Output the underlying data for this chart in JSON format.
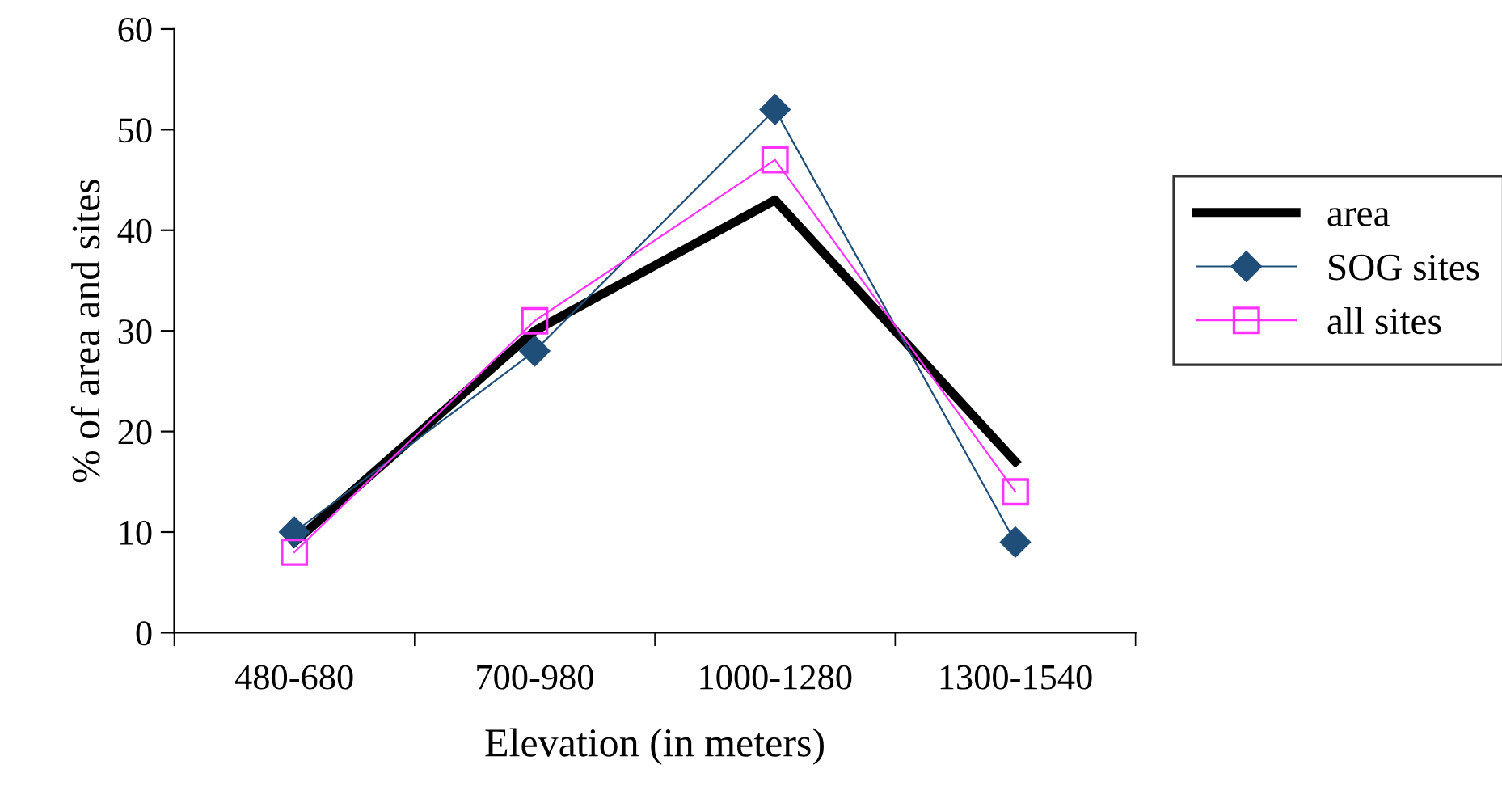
{
  "chart_data": {
    "type": "line",
    "xlabel": "Elevation (in meters)",
    "ylabel": "% of area and sites",
    "categories": [
      "480-680",
      "700-980",
      "1000-1280",
      "1300-1540"
    ],
    "series": [
      {
        "name": "area",
        "color": "#000000",
        "values": [
          9,
          30,
          43,
          17
        ],
        "marker": "none"
      },
      {
        "name": "SOG sites",
        "color": "#1f4e79",
        "values": [
          10,
          28,
          52,
          9
        ],
        "marker": "diamond"
      },
      {
        "name": "all sites",
        "color": "#ff33ff",
        "values": [
          8,
          31,
          47,
          14
        ],
        "marker": "square"
      }
    ],
    "ylim": [
      0,
      60
    ],
    "yticks": [
      0,
      10,
      20,
      30,
      40,
      50,
      60
    ],
    "grid": false,
    "legend": "right",
    "line_style": "solid"
  }
}
